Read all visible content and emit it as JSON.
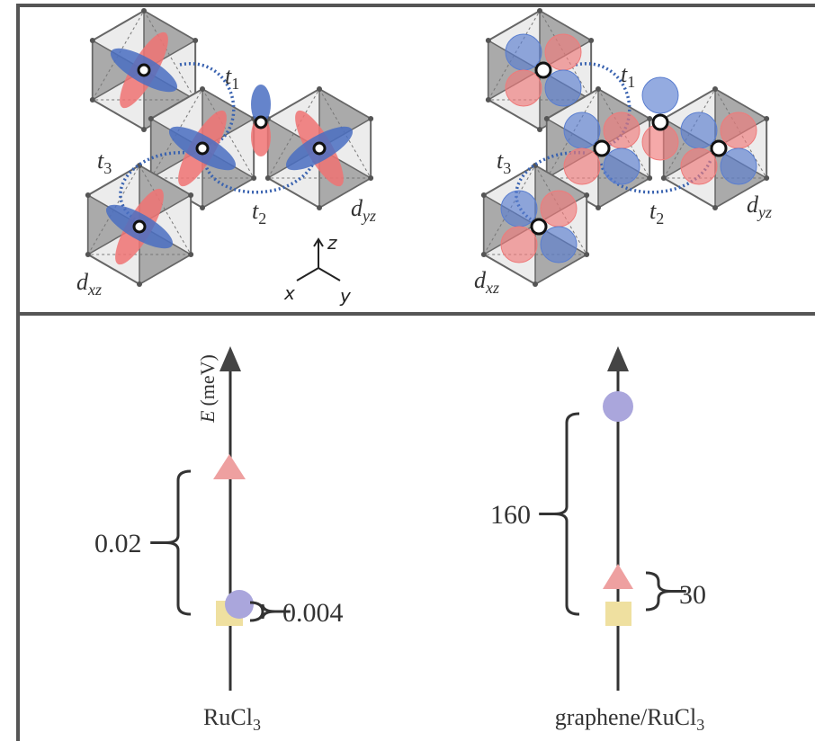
{
  "top": {
    "left": {
      "t1": {
        "main": "t",
        "sub": "1"
      },
      "t2": {
        "main": "t",
        "sub": "2"
      },
      "t3": {
        "main": "t",
        "sub": "3"
      },
      "dyz": {
        "main": "d",
        "sub": "yz"
      },
      "dxz": {
        "main": "d",
        "sub": "xz"
      },
      "axes": {
        "z": "z",
        "x": "x",
        "y": "y"
      }
    },
    "right": {
      "t1": {
        "main": "t",
        "sub": "1"
      },
      "t2": {
        "main": "t",
        "sub": "2"
      },
      "t3": {
        "main": "t",
        "sub": "3"
      },
      "dyz": {
        "main": "d",
        "sub": "yz"
      },
      "dxz": {
        "main": "d",
        "sub": "xz"
      }
    }
  },
  "bottom": {
    "axis_label": {
      "main": "E",
      "unit": "(meV)"
    },
    "left": {
      "gap_large": "0.02",
      "gap_small": "0.004",
      "label": {
        "main": "RuCl",
        "sub": "3"
      }
    },
    "right": {
      "gap_large": "160",
      "gap_small": "30",
      "label": {
        "main": "graphene/RuCl",
        "sub": "3"
      }
    }
  }
}
